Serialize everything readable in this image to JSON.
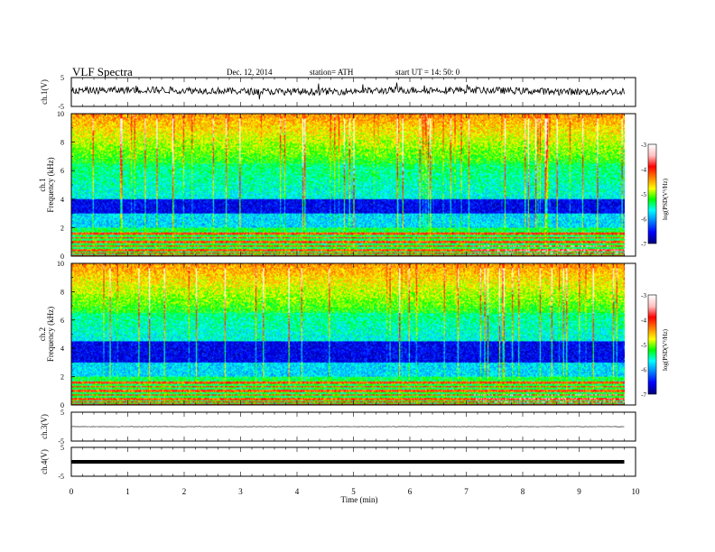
{
  "header": {
    "title": "VLF  Spectra",
    "date": "Dec. 12, 2014",
    "station": "station= ATH",
    "start": "start  UT  =   14: 50: 0"
  },
  "colors": {
    "colormap": [
      "#000080",
      "#0000ff",
      "#0080ff",
      "#00ffff",
      "#00ff00",
      "#ffff00",
      "#ff8000",
      "#ff0000",
      "#ffc0c0",
      "#ffffff"
    ],
    "trace": "#000000"
  },
  "chart_data": [
    {
      "type": "line",
      "title": "",
      "ylabel": "ch.1(V)",
      "yticks": [
        "5",
        "-5"
      ],
      "ylim": [
        -5,
        5
      ],
      "xlim": [
        0,
        9.8
      ],
      "level": 0.4,
      "noise": "high"
    },
    {
      "type": "heatmap",
      "title": "",
      "ylabel": "ch.1  Frequency (kHz)",
      "yticks": [
        "0",
        "2",
        "4",
        "6",
        "8",
        "10"
      ],
      "ylim": [
        0,
        10
      ],
      "xlim": [
        0,
        9.8
      ],
      "colorbar": {
        "label": "log(PSD(V²/Hz)",
        "ticks": [
          "-3",
          "-4",
          "-5",
          "-6",
          "-7"
        ],
        "range": [
          -7,
          -3
        ]
      },
      "dominant_band_khz": [
        3,
        4
      ],
      "low_freq_lines_khz": [
        0.2,
        0.4,
        0.7,
        1.0,
        1.3,
        1.6
      ]
    },
    {
      "type": "heatmap",
      "title": "",
      "ylabel": "ch.2  Frequency (kHz)",
      "yticks": [
        "0",
        "2",
        "4",
        "6",
        "8",
        "10"
      ],
      "ylim": [
        0,
        10
      ],
      "xlim": [
        0,
        9.8
      ],
      "colorbar": {
        "label": "log(PSD(V²/Hz)",
        "ticks": [
          "-3",
          "-4",
          "-5",
          "-6",
          "-7"
        ],
        "range": [
          -7,
          -3
        ]
      },
      "dominant_band_khz": [
        3,
        4.5
      ],
      "low_freq_lines_khz": [
        0.2,
        0.4,
        0.7,
        1.0,
        1.3,
        1.6
      ]
    },
    {
      "type": "line",
      "title": "",
      "ylabel": "ch.3(V)",
      "yticks": [
        "5",
        "-5"
      ],
      "ylim": [
        -5,
        5
      ],
      "xlim": [
        0,
        9.8
      ],
      "level": 0,
      "noise": "low"
    },
    {
      "type": "line",
      "title": "",
      "ylabel": "ch.4(V)",
      "yticks": [
        "5",
        "-5"
      ],
      "ylim": [
        -5,
        5
      ],
      "xlim": [
        0,
        9.8
      ],
      "level": 0,
      "noise": "thick"
    }
  ],
  "xaxis": {
    "label": "Time  (min)",
    "ticks": [
      "0",
      "1",
      "2",
      "3",
      "4",
      "5",
      "6",
      "7",
      "8",
      "9",
      "10"
    ],
    "range": [
      0,
      10
    ]
  }
}
